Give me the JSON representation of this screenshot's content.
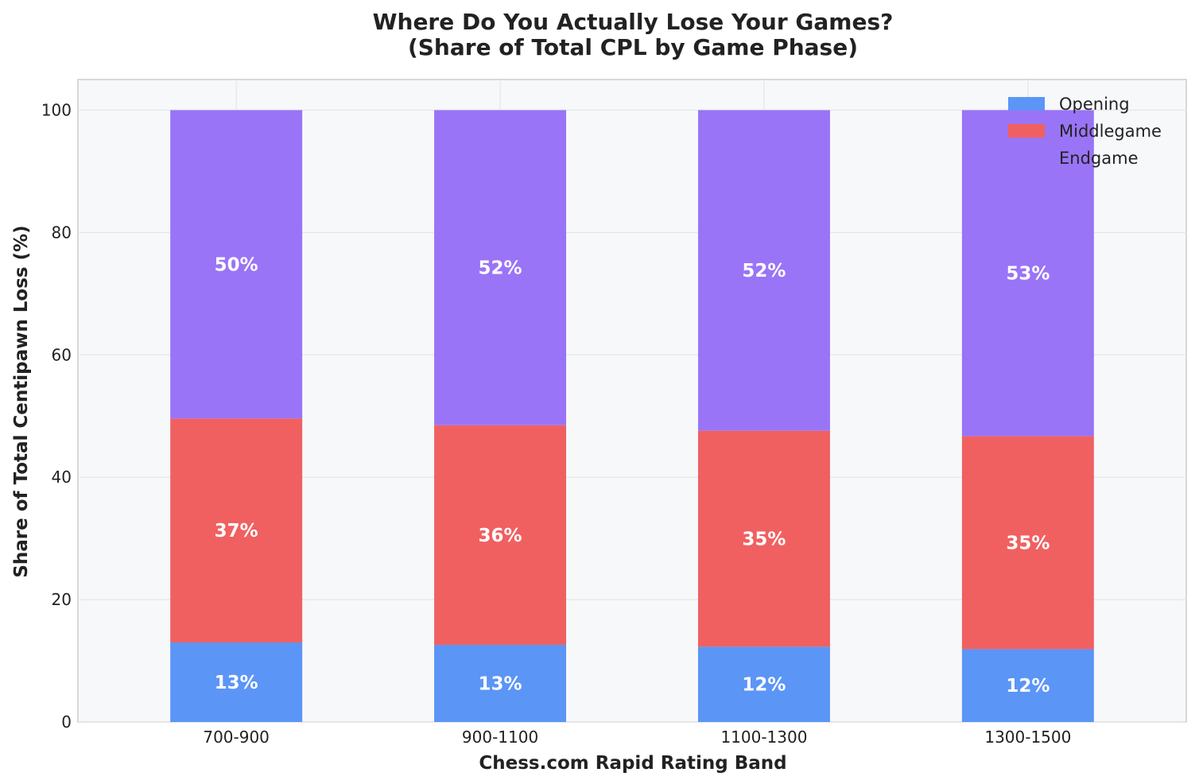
{
  "chart_data": {
    "type": "bar",
    "stacked": true,
    "title": "Where Do You Actually Lose Your Games?",
    "subtitle": "(Share of Total CPL by Game Phase)",
    "xlabel": "Chess.com Rapid Rating Band",
    "ylabel": "Share of Total Centipawn Loss (%)",
    "categories": [
      "700-900",
      "900-1100",
      "1100-1300",
      "1300-1500"
    ],
    "ylim": [
      0,
      105
    ],
    "yticks": [
      0,
      20,
      40,
      60,
      80,
      100
    ],
    "grid": true,
    "legend_position": "top-right",
    "series": [
      {
        "name": "Opening",
        "color": "#5b95f6",
        "values": [
          13.0,
          12.6,
          12.3,
          11.9
        ],
        "labels": [
          "13%",
          "13%",
          "12%",
          "12%"
        ]
      },
      {
        "name": "Middlegame",
        "color": "#f06060",
        "values": [
          36.6,
          35.9,
          35.3,
          34.8
        ],
        "labels": [
          "37%",
          "36%",
          "35%",
          "35%"
        ]
      },
      {
        "name": "Endgame",
        "color": "#9a74f6",
        "values": [
          50.4,
          51.5,
          52.4,
          53.3
        ],
        "labels": [
          "50%",
          "52%",
          "52%",
          "53%"
        ]
      }
    ]
  }
}
